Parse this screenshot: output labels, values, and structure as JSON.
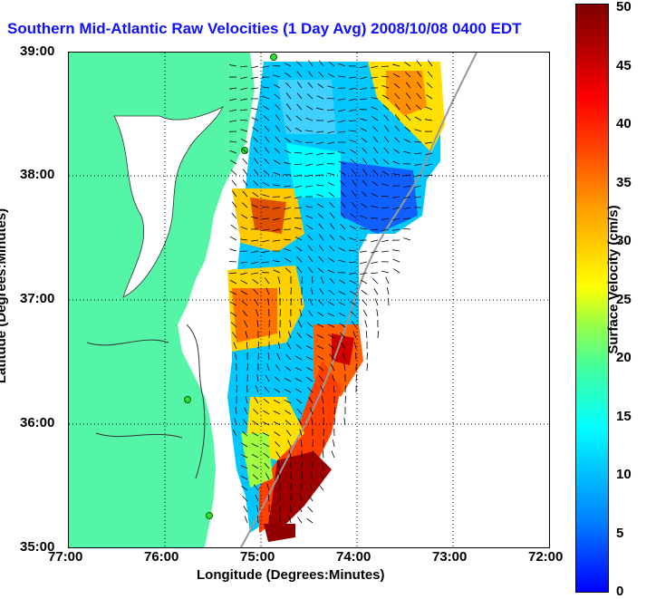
{
  "title": "Southern Mid-Atlantic Raw Velocities (1 Day Avg) 2008/10/08 0400 EDT",
  "xlabel": "Longitude (Degrees:Minutes)",
  "ylabel": "Latitude (Degrees:Minutes)",
  "colorbar": {
    "label": "Surface Velocity (cm/s)",
    "ticks": [
      "0",
      "5",
      "10",
      "15",
      "20",
      "25",
      "30",
      "35",
      "40",
      "45",
      "50"
    ]
  },
  "x_ticks": [
    "77:00",
    "76:00",
    "75:00",
    "74:00",
    "73:00",
    "72:00"
  ],
  "y_ticks": [
    "39:00",
    "38:00",
    "37:00",
    "36:00",
    "35:00"
  ],
  "colors": {
    "land": "#55f5a8",
    "title": "#1010ff"
  }
}
